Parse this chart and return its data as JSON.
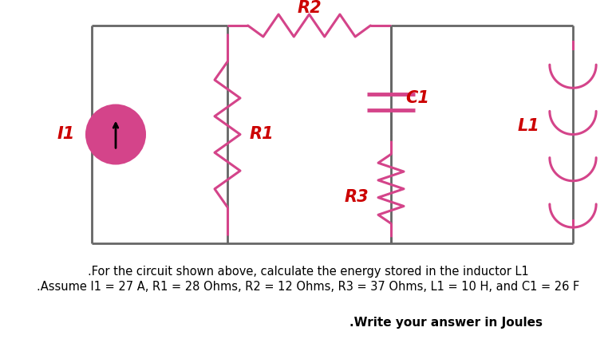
{
  "bg_color": "#ffffff",
  "wire_color": "#666666",
  "component_color": "#d4448a",
  "label_color": "#cc0000",
  "text_color": "#000000",
  "wire_lw": 2.0,
  "component_lw": 2.2,
  "title_text": ".For the circuit shown above, calculate the energy stored in the inductor L1",
  "subtitle_text": ".Assume I1 = 27 A, R1 = 28 Ohms, R2 = 12 Ohms, R3 = 37 Ohms, L1 = 10 H, and C1 = 26 F",
  "answer_text": ".Write your answer in Joules",
  "label_R2": "R2",
  "label_R1": "R1",
  "label_R3": "R3",
  "label_C1": "C1",
  "label_L1": "L1",
  "label_I1": "I1",
  "label_fontsize": 15,
  "text_fontsize": 10.5,
  "answer_fontsize": 11
}
